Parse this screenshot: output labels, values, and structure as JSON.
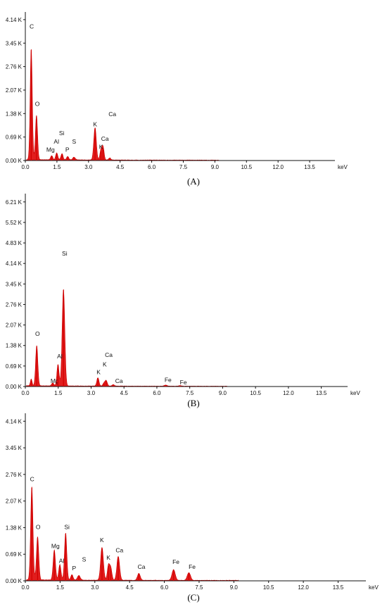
{
  "chart_data": [
    {
      "type": "area",
      "panel_label": "(A)",
      "x_unit": "keV",
      "xlim": [
        0,
        14.7
      ],
      "ylim": [
        0,
        4.2
      ],
      "x_ticks": [
        "0.0",
        "1.5",
        "3.0",
        "4.5",
        "6.0",
        "7.5",
        "9.0",
        "10.5",
        "12.0",
        "13.5"
      ],
      "y_ticks": [
        "0.00 K",
        "0.69 K",
        "1.38 K",
        "2.07 K",
        "2.76 K",
        "3.45 K",
        "4.14 K"
      ],
      "peaks": [
        {
          "element": "C",
          "x": 0.28,
          "y": 3.25,
          "width": 0.05
        },
        {
          "element": "O",
          "x": 0.53,
          "y": 1.3,
          "width": 0.05
        },
        {
          "element": "Mg",
          "x": 1.25,
          "y": 0.12,
          "width": 0.05
        },
        {
          "element": "Al",
          "x": 1.49,
          "y": 0.2,
          "width": 0.05
        },
        {
          "element": "Si",
          "x": 1.74,
          "y": 0.18,
          "width": 0.05
        },
        {
          "element": "P",
          "x": 2.01,
          "y": 0.1,
          "width": 0.05
        },
        {
          "element": "S",
          "x": 2.31,
          "y": 0.08,
          "width": 0.06
        },
        {
          "element": "K",
          "x": 3.31,
          "y": 0.95,
          "width": 0.06
        },
        {
          "element": "K",
          "x": 3.59,
          "y": 0.28,
          "width": 0.05
        },
        {
          "element": "Ca",
          "x": 3.69,
          "y": 0.38,
          "width": 0.05
        },
        {
          "element": "Ca",
          "x": 4.01,
          "y": 0.06,
          "width": 0.05
        }
      ],
      "labels": [
        {
          "text": "C",
          "x": 0.2,
          "y": 3.88
        },
        {
          "text": "O",
          "x": 0.46,
          "y": 1.6
        },
        {
          "text": "Mg",
          "x": 1.0,
          "y": 0.26
        },
        {
          "text": "Al",
          "x": 1.35,
          "y": 0.5
        },
        {
          "text": "Si",
          "x": 1.6,
          "y": 0.75
        },
        {
          "text": "P",
          "x": 1.9,
          "y": 0.26
        },
        {
          "text": "S",
          "x": 2.22,
          "y": 0.5
        },
        {
          "text": "K",
          "x": 3.22,
          "y": 1.0
        },
        {
          "text": "Ca",
          "x": 3.95,
          "y": 1.3
        },
        {
          "text": "Ca",
          "x": 3.6,
          "y": 0.58
        },
        {
          "text": "K",
          "x": 3.5,
          "y": 0.34
        }
      ]
    },
    {
      "type": "area",
      "panel_label": "(B)",
      "x_unit": "keV",
      "xlim": [
        0,
        14.7
      ],
      "ylim": [
        0,
        6.3
      ],
      "x_ticks": [
        "0.0",
        "1.5",
        "3.0",
        "4.5",
        "6.0",
        "7.5",
        "9.0",
        "10.5",
        "12.0",
        "13.5"
      ],
      "y_ticks": [
        "0.00 K",
        "0.69 K",
        "1.38 K",
        "2.07 K",
        "2.76 K",
        "3.45 K",
        "4.14 K",
        "4.83 K",
        "5.52 K",
        "6.21 K"
      ],
      "peaks": [
        {
          "element": "C",
          "x": 0.27,
          "y": 0.22,
          "width": 0.04
        },
        {
          "element": "O",
          "x": 0.52,
          "y": 1.35,
          "width": 0.05
        },
        {
          "element": "Mg",
          "x": 1.25,
          "y": 0.1,
          "width": 0.05
        },
        {
          "element": "Al",
          "x": 1.49,
          "y": 0.72,
          "width": 0.05
        },
        {
          "element": "Si",
          "x": 1.74,
          "y": 3.25,
          "width": 0.06
        },
        {
          "element": "K",
          "x": 3.31,
          "y": 0.28,
          "width": 0.05
        },
        {
          "element": "K",
          "x": 3.59,
          "y": 0.1,
          "width": 0.05
        },
        {
          "element": "Ca",
          "x": 3.69,
          "y": 0.18,
          "width": 0.05
        },
        {
          "element": "Ca",
          "x": 4.01,
          "y": 0.05,
          "width": 0.05
        },
        {
          "element": "Fe",
          "x": 6.4,
          "y": 0.04,
          "width": 0.06
        },
        {
          "element": "Fe",
          "x": 7.06,
          "y": 0.02,
          "width": 0.06
        }
      ],
      "labels": [
        {
          "text": "Si",
          "x": 1.67,
          "y": 4.4
        },
        {
          "text": "O",
          "x": 0.45,
          "y": 1.7
        },
        {
          "text": "Al",
          "x": 1.45,
          "y": 0.95
        },
        {
          "text": "Mg",
          "x": 1.15,
          "y": 0.12
        },
        {
          "text": "K",
          "x": 3.25,
          "y": 0.42
        },
        {
          "text": "K",
          "x": 3.53,
          "y": 0.67
        },
        {
          "text": "Ca",
          "x": 3.63,
          "y": 1.0
        },
        {
          "text": "Ca",
          "x": 4.1,
          "y": 0.12
        },
        {
          "text": "Fe",
          "x": 6.35,
          "y": 0.15
        },
        {
          "text": "Fe",
          "x": 7.05,
          "y": 0.07
        }
      ]
    },
    {
      "type": "area",
      "panel_label": "(C)",
      "x_unit": "keV",
      "xlim": [
        0,
        14.7
      ],
      "ylim": [
        0,
        4.2
      ],
      "x_ticks": [
        "0.0",
        "1.5",
        "3.0",
        "4.5",
        "6.0",
        "7.5",
        "9.0",
        "10.5",
        "12.0",
        "13.5"
      ],
      "y_ticks": [
        "0.00 K",
        "0.69 K",
        "1.38 K",
        "2.07 K",
        "2.76 K",
        "3.45 K",
        "4.14 K"
      ],
      "peaks": [
        {
          "element": "C",
          "x": 0.28,
          "y": 2.42,
          "width": 0.05
        },
        {
          "element": "O",
          "x": 0.53,
          "y": 1.12,
          "width": 0.05
        },
        {
          "element": "Mg",
          "x": 1.25,
          "y": 0.78,
          "width": 0.05
        },
        {
          "element": "Al",
          "x": 1.49,
          "y": 0.4,
          "width": 0.05
        },
        {
          "element": "Si",
          "x": 1.74,
          "y": 1.22,
          "width": 0.05
        },
        {
          "element": "P",
          "x": 2.01,
          "y": 0.14,
          "width": 0.05
        },
        {
          "element": "S",
          "x": 2.31,
          "y": 0.12,
          "width": 0.06
        },
        {
          "element": "K",
          "x": 3.31,
          "y": 0.85,
          "width": 0.06
        },
        {
          "element": "K",
          "x": 3.59,
          "y": 0.38,
          "width": 0.05
        },
        {
          "element": "Ca",
          "x": 3.69,
          "y": 0.3,
          "width": 0.05
        },
        {
          "element": "Ca",
          "x": 4.01,
          "y": 0.62,
          "width": 0.06
        },
        {
          "element": "Ca",
          "x": 4.9,
          "y": 0.18,
          "width": 0.06
        },
        {
          "element": "Fe",
          "x": 6.4,
          "y": 0.28,
          "width": 0.07
        },
        {
          "element": "Fe",
          "x": 7.06,
          "y": 0.2,
          "width": 0.07
        }
      ],
      "labels": [
        {
          "text": "C",
          "x": 0.2,
          "y": 2.58
        },
        {
          "text": "O",
          "x": 0.45,
          "y": 1.34
        },
        {
          "text": "Mg",
          "x": 1.12,
          "y": 0.85
        },
        {
          "text": "Al",
          "x": 1.45,
          "y": 0.47
        },
        {
          "text": "Si",
          "x": 1.68,
          "y": 1.34
        },
        {
          "text": "P",
          "x": 2.02,
          "y": 0.27
        },
        {
          "text": "S",
          "x": 2.45,
          "y": 0.5
        },
        {
          "text": "K",
          "x": 3.22,
          "y": 1.0
        },
        {
          "text": "K",
          "x": 3.5,
          "y": 0.55
        },
        {
          "text": "Ca",
          "x": 3.9,
          "y": 0.74
        },
        {
          "text": "Ca",
          "x": 4.85,
          "y": 0.31
        },
        {
          "text": "Fe",
          "x": 6.35,
          "y": 0.44
        },
        {
          "text": "Fe",
          "x": 7.05,
          "y": 0.31
        }
      ]
    }
  ]
}
